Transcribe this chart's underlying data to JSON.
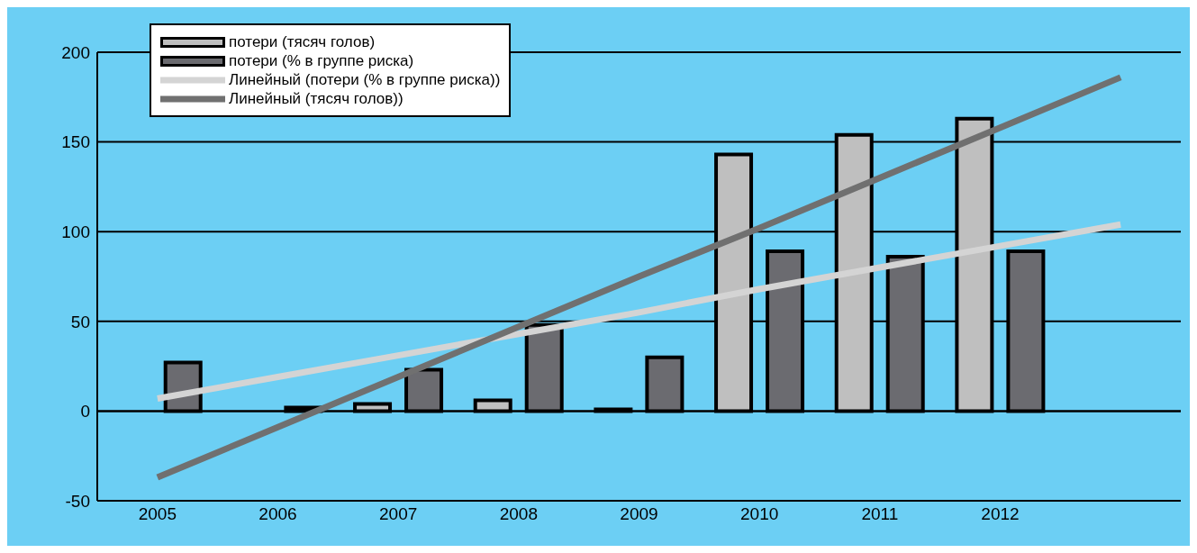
{
  "chart_data": {
    "type": "bar",
    "categories": [
      "2005",
      "2006",
      "2007",
      "2008",
      "2009",
      "2010",
      "2011",
      "2012",
      null
    ],
    "series": [
      {
        "name": "потери (тясяч голов)",
        "color": "#bfbfbf",
        "values": [
          null,
          null,
          4,
          6,
          1,
          143,
          154,
          163,
          null
        ]
      },
      {
        "name": "потери (% в группе риска)",
        "color": "#6b6b70",
        "values": [
          27,
          2,
          23,
          48,
          30,
          89,
          86,
          89,
          null
        ]
      },
      {
        "name": "Линейный (потери (% в группе риска))",
        "type": "line",
        "color": "#d4d4d4",
        "values": [
          7,
          19,
          31,
          43,
          55,
          68,
          80,
          92,
          104
        ]
      },
      {
        "name": "Линейный (тясяч голов))",
        "type": "line",
        "color": "#707070",
        "values": [
          -37,
          -9,
          19,
          47,
          75,
          102,
          130,
          158,
          186
        ]
      }
    ],
    "ylim": [
      -50,
      200
    ],
    "yticks": [
      -50,
      0,
      50,
      100,
      150,
      200
    ],
    "grid": "y",
    "legend": "top left",
    "marker": "none",
    "line_style": "solid"
  }
}
